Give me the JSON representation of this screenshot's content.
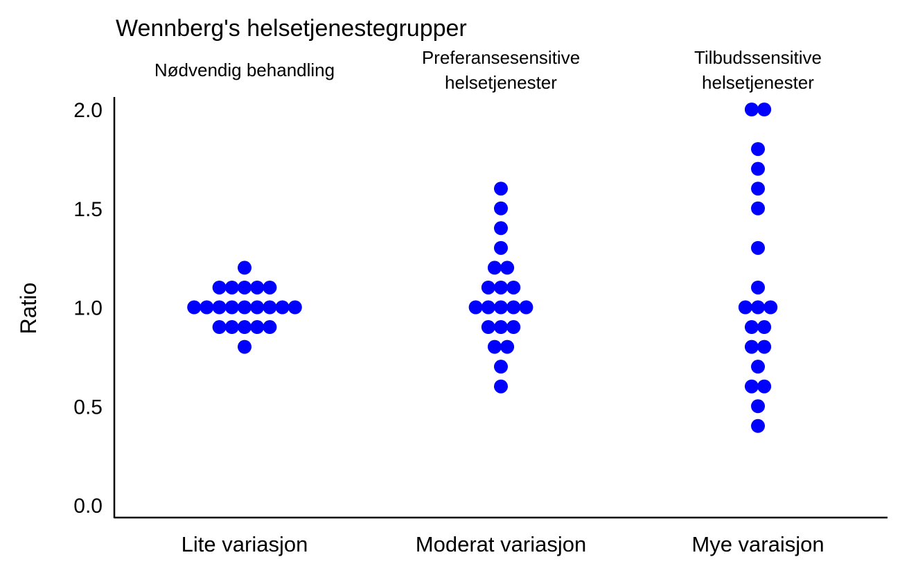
{
  "chart_data": {
    "type": "scatter",
    "title": "Wennberg's helsetjenestegrupper",
    "ylabel": "Ratio",
    "xlabel": "",
    "ylim": [
      0.0,
      2.0
    ],
    "y_ticks": [
      "0.0",
      "0.5",
      "1.0",
      "1.5",
      "2.0"
    ],
    "grid": false,
    "marker_color": "#0000ff",
    "categories": [
      "Lite variasjon",
      "Moderat variasjon",
      "Mye varaisjon"
    ],
    "group_labels": [
      [
        "Nødvendig behandling"
      ],
      [
        "Preferansesensitive",
        "helsetjenester"
      ],
      [
        "Tilbudssensitive",
        "helsetjenester"
      ]
    ],
    "series": [
      {
        "category": "Lite variasjon",
        "values": [
          1.2,
          1.1,
          1.1,
          1.1,
          1.1,
          1.1,
          1.0,
          1.0,
          1.0,
          1.0,
          1.0,
          1.0,
          1.0,
          1.0,
          1.0,
          0.9,
          0.9,
          0.9,
          0.9,
          0.9,
          0.8
        ]
      },
      {
        "category": "Moderat variasjon",
        "values": [
          1.6,
          1.5,
          1.4,
          1.3,
          1.2,
          1.2,
          1.1,
          1.1,
          1.1,
          1.0,
          1.0,
          1.0,
          1.0,
          1.0,
          0.9,
          0.9,
          0.9,
          0.8,
          0.8,
          0.7,
          0.6
        ]
      },
      {
        "category": "Mye varaisjon",
        "values": [
          2.0,
          2.0,
          1.8,
          1.7,
          1.6,
          1.5,
          1.3,
          1.1,
          1.0,
          1.0,
          1.0,
          0.9,
          0.9,
          0.8,
          0.8,
          0.7,
          0.6,
          0.6,
          0.5,
          0.4
        ]
      }
    ]
  }
}
